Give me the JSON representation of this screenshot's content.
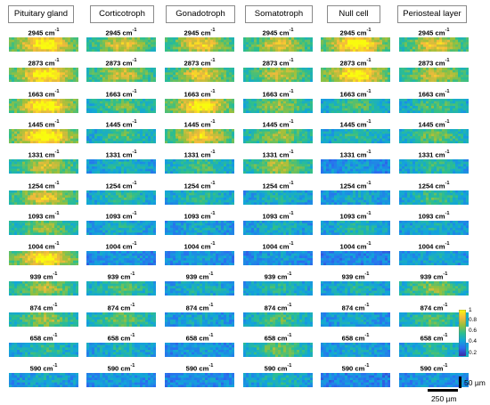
{
  "columns": [
    "Pituitary gland",
    "Corticotroph",
    "Gonadotroph",
    "Somatotroph",
    "Null cell",
    "Periosteal layer"
  ],
  "rows": [
    {
      "wavenumber": "2945",
      "unit": "cm",
      "exp": "-1"
    },
    {
      "wavenumber": "2873",
      "unit": "cm",
      "exp": "-1"
    },
    {
      "wavenumber": "1663",
      "unit": "cm",
      "exp": "-1"
    },
    {
      "wavenumber": "1445",
      "unit": "cm",
      "exp": "-1"
    },
    {
      "wavenumber": "1331",
      "unit": "cm",
      "exp": "-1"
    },
    {
      "wavenumber": "1254",
      "unit": "cm",
      "exp": "-1"
    },
    {
      "wavenumber": "1093",
      "unit": "cm",
      "exp": "-1"
    },
    {
      "wavenumber": "1004",
      "unit": "cm",
      "exp": "-1"
    },
    {
      "wavenumber": "939",
      "unit": "cm",
      "exp": "-1"
    },
    {
      "wavenumber": "874",
      "unit": "cm",
      "exp": "-1"
    },
    {
      "wavenumber": "658",
      "unit": "cm",
      "exp": "-1"
    },
    {
      "wavenumber": "590",
      "unit": "cm",
      "exp": "-1"
    }
  ],
  "intensity_levels": [
    [
      0.9,
      0.72,
      0.78,
      0.72,
      0.92,
      0.75
    ],
    [
      0.9,
      0.7,
      0.75,
      0.68,
      0.9,
      0.7
    ],
    [
      0.92,
      0.55,
      0.88,
      0.6,
      0.5,
      0.5
    ],
    [
      0.95,
      0.5,
      0.8,
      0.62,
      0.45,
      0.55
    ],
    [
      0.7,
      0.4,
      0.5,
      0.65,
      0.3,
      0.45
    ],
    [
      0.75,
      0.45,
      0.45,
      0.4,
      0.35,
      0.48
    ],
    [
      0.6,
      0.38,
      0.35,
      0.38,
      0.42,
      0.38
    ],
    [
      0.9,
      0.3,
      0.3,
      0.3,
      0.25,
      0.35
    ],
    [
      0.65,
      0.5,
      0.4,
      0.42,
      0.4,
      0.6
    ],
    [
      0.62,
      0.55,
      0.35,
      0.5,
      0.35,
      0.5
    ],
    [
      0.45,
      0.4,
      0.3,
      0.55,
      0.35,
      0.45
    ],
    [
      0.35,
      0.3,
      0.28,
      0.4,
      0.25,
      0.3
    ]
  ],
  "colormap": [
    "#3e26a8",
    "#2b6ef0",
    "#12a6d9",
    "#2ebf8c",
    "#99c03c",
    "#f5ba3c",
    "#f9fb0e"
  ],
  "colorbar": {
    "ticks": [
      "1",
      "0.8",
      "0.6",
      "0.4",
      "0.2"
    ]
  },
  "scale_bars": {
    "vertical_label": "50 µm",
    "horizontal_label": "250 µm"
  }
}
